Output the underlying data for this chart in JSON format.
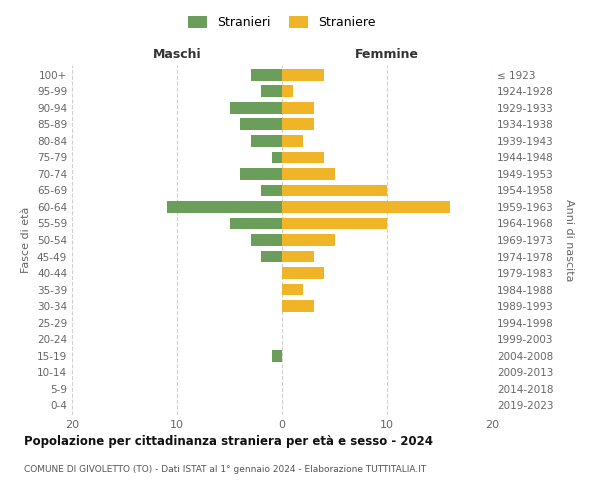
{
  "age_groups": [
    "0-4",
    "5-9",
    "10-14",
    "15-19",
    "20-24",
    "25-29",
    "30-34",
    "35-39",
    "40-44",
    "45-49",
    "50-54",
    "55-59",
    "60-64",
    "65-69",
    "70-74",
    "75-79",
    "80-84",
    "85-89",
    "90-94",
    "95-99",
    "100+"
  ],
  "birth_years": [
    "2019-2023",
    "2014-2018",
    "2009-2013",
    "2004-2008",
    "1999-2003",
    "1994-1998",
    "1989-1993",
    "1984-1988",
    "1979-1983",
    "1974-1978",
    "1969-1973",
    "1964-1968",
    "1959-1963",
    "1954-1958",
    "1949-1953",
    "1944-1948",
    "1939-1943",
    "1934-1938",
    "1929-1933",
    "1924-1928",
    "≤ 1923"
  ],
  "maschi": [
    3,
    2,
    5,
    4,
    3,
    1,
    4,
    2,
    11,
    5,
    3,
    2,
    0,
    0,
    0,
    0,
    0,
    1,
    0,
    0,
    0
  ],
  "femmine": [
    4,
    1,
    3,
    3,
    2,
    4,
    5,
    10,
    16,
    10,
    5,
    3,
    4,
    2,
    3,
    0,
    0,
    0,
    0,
    0,
    0
  ],
  "maschi_color": "#6a9e5a",
  "femmine_color": "#f0b429",
  "title": "Popolazione per cittadinanza straniera per età e sesso - 2024",
  "subtitle": "COMUNE DI GIVOLETTO (TO) - Dati ISTAT al 1° gennaio 2024 - Elaborazione TUTTITALIA.IT",
  "xlabel_left": "Maschi",
  "xlabel_right": "Femmine",
  "ylabel_left": "Fasce di età",
  "ylabel_right": "Anni di nascita",
  "legend_stranieri": "Stranieri",
  "legend_straniere": "Straniere",
  "xlim": 20,
  "background_color": "#ffffff",
  "grid_color": "#d0d0d0"
}
